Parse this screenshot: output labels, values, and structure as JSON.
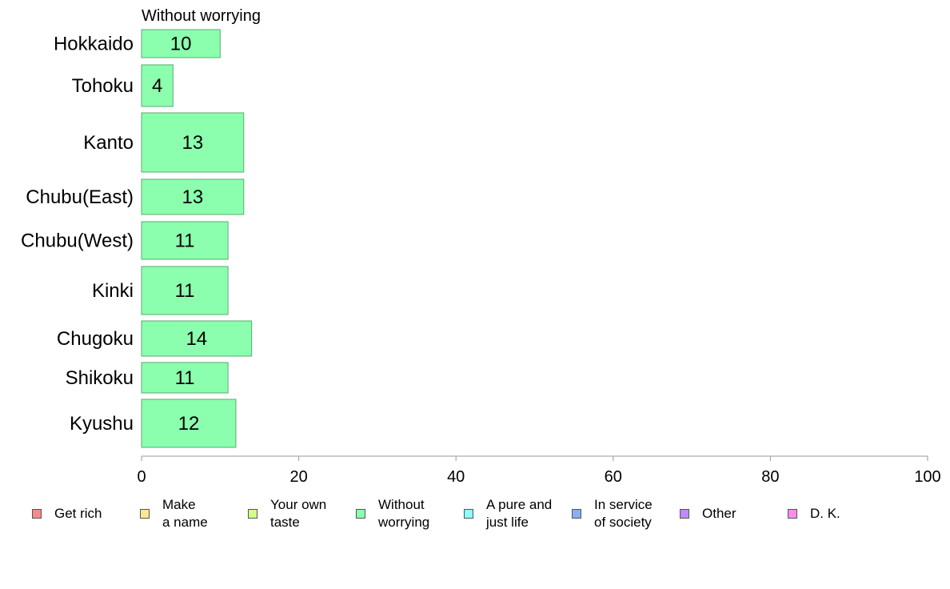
{
  "chart_data": {
    "type": "bar",
    "orientation": "horizontal",
    "title": "Without worrying",
    "categories": [
      "Hokkaido",
      "Tohoku",
      "Kanto",
      "Chubu(East)",
      "Chubu(West)",
      "Kinki",
      "Chugoku",
      "Shikoku",
      "Kyushu"
    ],
    "series": [
      {
        "name": "Without worrying",
        "values": [
          10,
          4,
          13,
          13,
          11,
          11,
          14,
          11,
          12
        ],
        "color": "#8BFFAE"
      }
    ],
    "xlim": [
      0,
      100
    ],
    "xticks": [
      "0",
      "20",
      "40",
      "60",
      "80",
      "100"
    ],
    "grid": false,
    "legend_position": "bottom",
    "legend": [
      {
        "label": "Get rich",
        "color": "#F28B8B"
      },
      {
        "label": "Make\na name",
        "color": "#FFE88B"
      },
      {
        "label": "Your own\ntaste",
        "color": "#D2FF8B"
      },
      {
        "label": "Without\nworrying",
        "color": "#8BFFAE"
      },
      {
        "label": "A pure and\njust life",
        "color": "#8BFFFF"
      },
      {
        "label": "In service\nof society",
        "color": "#8BAEF2"
      },
      {
        "label": "Other",
        "color": "#BF8BFF"
      },
      {
        "label": "D. K.",
        "color": "#FF8BEE"
      }
    ]
  }
}
